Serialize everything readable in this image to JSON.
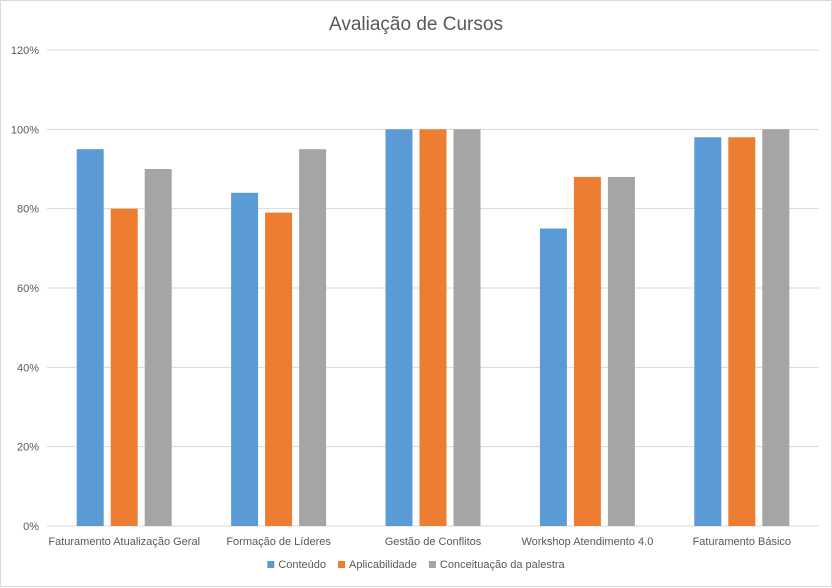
{
  "chart_data": {
    "type": "bar",
    "title": "Avaliação de Cursos",
    "categories": [
      "Faturamento Atualização Geral",
      "Formação de Líderes",
      "Gestão de Conflitos",
      "Workshop Atendimento 4.0",
      "Faturamento Básico"
    ],
    "series": [
      {
        "name": "Conteúdo",
        "color": "#5b9bd5",
        "values": [
          0.95,
          0.84,
          1.0,
          0.75,
          0.98
        ]
      },
      {
        "name": "Aplicabilidade",
        "color": "#ed7d31",
        "values": [
          0.8,
          0.79,
          1.0,
          0.88,
          0.98
        ]
      },
      {
        "name": "Conceituação da palestra",
        "color": "#a5a5a5",
        "values": [
          0.9,
          0.95,
          1.0,
          0.88,
          1.0
        ]
      }
    ],
    "ylim": [
      0,
      1.2
    ],
    "yticks": [
      "0%",
      "20%",
      "40%",
      "60%",
      "80%",
      "100%",
      "120%"
    ],
    "grid": true,
    "legend": "bottom"
  }
}
